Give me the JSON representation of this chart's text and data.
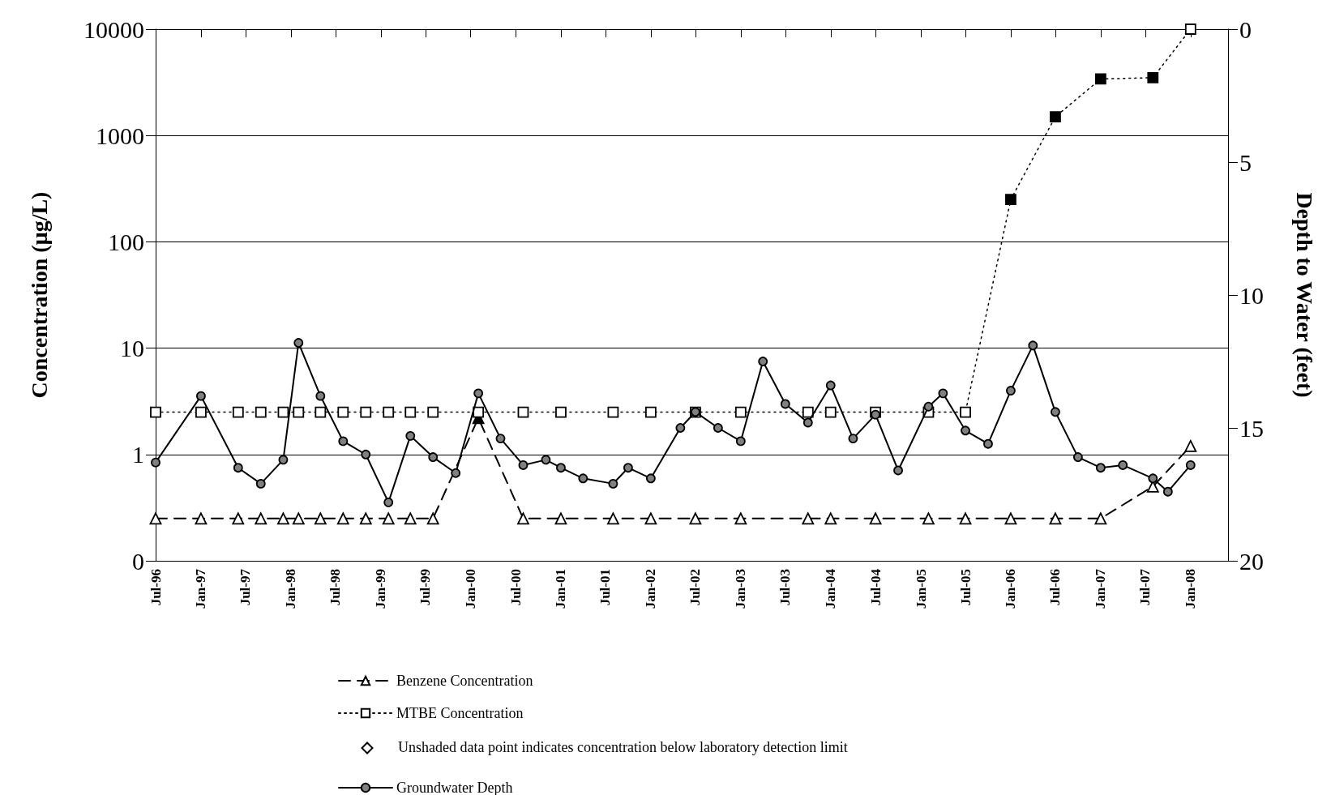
{
  "chart_data": {
    "type": "line",
    "ylabel": "Concentration (µg/L)",
    "y2label": "Depth to Water (feet)",
    "xlim": [
      "1996-07",
      "2008-06"
    ],
    "xticks": [
      {
        "value": "1996-07",
        "label": "Jul-96"
      },
      {
        "value": "1997-01",
        "label": "Jan-97"
      },
      {
        "value": "1997-07",
        "label": "Jul-97"
      },
      {
        "value": "1998-01",
        "label": "Jan-98"
      },
      {
        "value": "1998-07",
        "label": "Jul-98"
      },
      {
        "value": "1999-01",
        "label": "Jan-99"
      },
      {
        "value": "1999-07",
        "label": "Jul-99"
      },
      {
        "value": "2000-01",
        "label": "Jan-00"
      },
      {
        "value": "2000-07",
        "label": "Jul-00"
      },
      {
        "value": "2001-01",
        "label": "Jan-01"
      },
      {
        "value": "2001-07",
        "label": "Jul-01"
      },
      {
        "value": "2002-01",
        "label": "Jan-02"
      },
      {
        "value": "2002-07",
        "label": "Jul-02"
      },
      {
        "value": "2003-01",
        "label": "Jan-03"
      },
      {
        "value": "2003-07",
        "label": "Jul-03"
      },
      {
        "value": "2004-01",
        "label": "Jan-04"
      },
      {
        "value": "2004-07",
        "label": "Jul-04"
      },
      {
        "value": "2005-01",
        "label": "Jan-05"
      },
      {
        "value": "2005-07",
        "label": "Jul-05"
      },
      {
        "value": "2006-01",
        "label": "Jan-06"
      },
      {
        "value": "2006-07",
        "label": "Jul-06"
      },
      {
        "value": "2007-01",
        "label": "Jan-07"
      },
      {
        "value": "2007-07",
        "label": "Jul-07"
      },
      {
        "value": "2008-01",
        "label": "Jan-08"
      }
    ],
    "ylim": [
      0.1,
      10000
    ],
    "yticks": [
      {
        "value": 0.1,
        "label": "0"
      },
      1,
      10,
      100,
      1000,
      10000
    ],
    "y2lim": [
      20,
      0
    ],
    "y2ticks": [
      0,
      5,
      10,
      15,
      20
    ],
    "log": "y",
    "grid": "y",
    "legend": "bottom",
    "annotations": [
      "Unshaded data point indicates concentration below laboratory detection limit"
    ],
    "series": [
      {
        "name": "Benzene Concentration",
        "color": "#000000",
        "marker": "triangle",
        "line_style": "dashed",
        "x": [
          "1996-07",
          "1997-01",
          "1997-06",
          "1997-09",
          "1997-12",
          "1998-02",
          "1998-05",
          "1998-08",
          "1998-11",
          "1999-02",
          "1999-05",
          "1999-08",
          "2000-02",
          "2000-08",
          "2001-01",
          "2001-08",
          "2002-01",
          "2002-07",
          "2003-01",
          "2003-10",
          "2004-01",
          "2004-07",
          "2005-02",
          "2005-07",
          "2006-01",
          "2006-07",
          "2007-01",
          "2007-08",
          "2008-01"
        ],
        "values": [
          0.25,
          0.25,
          0.25,
          0.25,
          0.25,
          0.25,
          0.25,
          0.25,
          0.25,
          0.25,
          0.25,
          0.25,
          2.2,
          0.25,
          0.25,
          0.25,
          0.25,
          0.25,
          0.25,
          0.25,
          0.25,
          0.25,
          0.25,
          0.25,
          0.25,
          0.25,
          0.25,
          0.5,
          1.2
        ],
        "colors": [
          "#ffffff",
          "#ffffff",
          "#ffffff",
          "#ffffff",
          "#ffffff",
          "#ffffff",
          "#ffffff",
          "#ffffff",
          "#ffffff",
          "#ffffff",
          "#ffffff",
          "#ffffff",
          "#000000",
          "#ffffff",
          "#ffffff",
          "#ffffff",
          "#ffffff",
          "#ffffff",
          "#ffffff",
          "#ffffff",
          "#ffffff",
          "#ffffff",
          "#ffffff",
          "#ffffff",
          "#ffffff",
          "#ffffff",
          "#ffffff",
          "#ffffff",
          "#ffffff"
        ]
      },
      {
        "name": "MTBE Concentration",
        "color": "#000000",
        "marker": "square",
        "line_style": "dotted",
        "x": [
          "1996-07",
          "1997-01",
          "1997-06",
          "1997-09",
          "1997-12",
          "1998-02",
          "1998-05",
          "1998-08",
          "1998-11",
          "1999-02",
          "1999-05",
          "1999-08",
          "2000-02",
          "2000-08",
          "2001-01",
          "2001-08",
          "2002-01",
          "2002-07",
          "2003-01",
          "2003-10",
          "2004-01",
          "2004-07",
          "2005-02",
          "2005-07",
          "2006-01",
          "2006-07",
          "2007-01",
          "2007-08",
          "2008-01"
        ],
        "values": [
          2.5,
          2.5,
          2.5,
          2.5,
          2.5,
          2.5,
          2.5,
          2.5,
          2.5,
          2.5,
          2.5,
          2.5,
          2.5,
          2.5,
          2.5,
          2.5,
          2.5,
          2.5,
          2.5,
          2.5,
          2.5,
          2.5,
          2.5,
          2.5,
          250,
          1500,
          3400,
          3500,
          10000
        ],
        "colors": [
          "#ffffff",
          "#ffffff",
          "#ffffff",
          "#ffffff",
          "#ffffff",
          "#ffffff",
          "#ffffff",
          "#ffffff",
          "#ffffff",
          "#ffffff",
          "#ffffff",
          "#ffffff",
          "#ffffff",
          "#ffffff",
          "#ffffff",
          "#ffffff",
          "#ffffff",
          "#ffffff",
          "#ffffff",
          "#ffffff",
          "#ffffff",
          "#ffffff",
          "#ffffff",
          "#ffffff",
          "#000000",
          "#000000",
          "#000000",
          "#000000",
          "#ffffff"
        ]
      },
      {
        "name": "Groundwater Depth",
        "color": "#000000",
        "marker": "circle",
        "line_style": "solid",
        "axis": "y2",
        "x": [
          "1996-07",
          "1997-01",
          "1997-06",
          "1997-09",
          "1997-12",
          "1998-02",
          "1998-05",
          "1998-08",
          "1998-11",
          "1999-02",
          "1999-05",
          "1999-08",
          "1999-11",
          "2000-02",
          "2000-05",
          "2000-08",
          "2000-11",
          "2001-01",
          "2001-04",
          "2001-08",
          "2001-10",
          "2002-01",
          "2002-05",
          "2002-07",
          "2002-10",
          "2003-01",
          "2003-04",
          "2003-07",
          "2003-10",
          "2004-01",
          "2004-04",
          "2004-07",
          "2004-10",
          "2005-02",
          "2005-04",
          "2005-07",
          "2005-10",
          "2006-01",
          "2006-04",
          "2006-07",
          "2006-10",
          "2007-01",
          "2007-04",
          "2007-08",
          "2007-10",
          "2008-01"
        ],
        "values": [
          16.3,
          13.8,
          16.5,
          17.1,
          16.2,
          11.8,
          13.8,
          15.5,
          16.0,
          17.8,
          15.3,
          16.1,
          16.7,
          13.7,
          15.4,
          16.4,
          16.2,
          16.5,
          16.9,
          17.1,
          16.5,
          16.9,
          15.0,
          14.4,
          15.0,
          15.5,
          12.5,
          14.1,
          14.8,
          13.4,
          15.4,
          14.5,
          16.6,
          14.2,
          13.7,
          15.1,
          15.6,
          13.6,
          11.9,
          14.4,
          16.1,
          16.5,
          16.4,
          16.9,
          17.4,
          16.4
        ],
        "colors": [
          "#808080",
          "#808080",
          "#808080",
          "#808080",
          "#808080",
          "#808080",
          "#808080",
          "#808080",
          "#808080",
          "#808080",
          "#808080",
          "#808080",
          "#808080",
          "#808080",
          "#808080",
          "#808080",
          "#808080",
          "#808080",
          "#808080",
          "#808080",
          "#808080",
          "#808080",
          "#808080",
          "#808080",
          "#808080",
          "#808080",
          "#808080",
          "#808080",
          "#808080",
          "#808080",
          "#808080",
          "#808080",
          "#808080",
          "#808080",
          "#808080",
          "#808080",
          "#808080",
          "#808080",
          "#808080",
          "#808080",
          "#808080",
          "#808080",
          "#808080",
          "#808080",
          "#808080",
          "#808080"
        ]
      }
    ]
  }
}
